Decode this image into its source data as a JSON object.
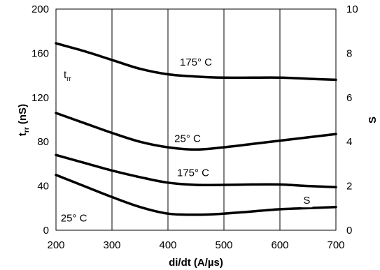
{
  "chart_data": {
    "type": "line",
    "title": "",
    "xlabel": "di/dt (A/µs)",
    "ylabel_left": {
      "main": "t",
      "sub": "rr",
      "rest": " (nS)"
    },
    "ylabel_right": "S",
    "xlim": [
      200,
      700
    ],
    "ylim_left": [
      0,
      200
    ],
    "ylim_right": [
      0,
      10
    ],
    "xticks": [
      200,
      300,
      400,
      500,
      600,
      700
    ],
    "yticks_left": [
      0,
      40,
      80,
      120,
      160,
      200
    ],
    "yticks_right": [
      0,
      2,
      4,
      6,
      8,
      10
    ],
    "grid": "vertical",
    "series": [
      {
        "axis": "left",
        "x": [
          200,
          250,
          300,
          350,
          400,
          450,
          500,
          550,
          600,
          650,
          700
        ],
        "y": [
          169,
          162,
          154,
          146,
          141,
          139,
          138,
          138,
          138,
          137,
          136
        ]
      },
      {
        "axis": "left",
        "x": [
          200,
          250,
          300,
          350,
          400,
          450,
          500,
          550,
          600,
          650,
          700
        ],
        "y": [
          106,
          97,
          88,
          80,
          75,
          73,
          75,
          78,
          81,
          84,
          87
        ]
      },
      {
        "axis": "right",
        "x": [
          200,
          250,
          300,
          350,
          400,
          450,
          500,
          550,
          600,
          650,
          700
        ],
        "y": [
          3.4,
          3.05,
          2.7,
          2.4,
          2.15,
          2.05,
          2.05,
          2.07,
          2.07,
          2.0,
          1.95
        ]
      },
      {
        "axis": "right",
        "x": [
          200,
          250,
          300,
          350,
          400,
          450,
          500,
          550,
          600,
          650,
          700
        ],
        "y": [
          2.5,
          2.0,
          1.5,
          1.05,
          0.75,
          0.7,
          0.75,
          0.85,
          0.95,
          1.0,
          1.05
        ]
      }
    ],
    "annotations": [
      {
        "text": "175° C",
        "x": 450,
        "y": 152,
        "axis": "left"
      },
      {
        "text": "25° C",
        "x": 435,
        "y": 83,
        "axis": "left"
      },
      {
        "text": "175° C",
        "x": 445,
        "y": 52,
        "axis": "left"
      },
      {
        "text": "25° C",
        "x": 232,
        "y": 11,
        "axis": "left"
      },
      {
        "text": "S",
        "x": 648,
        "y": 27,
        "axis": "left"
      }
    ],
    "trr_label": {
      "main": "t",
      "sub": "rr"
    }
  }
}
